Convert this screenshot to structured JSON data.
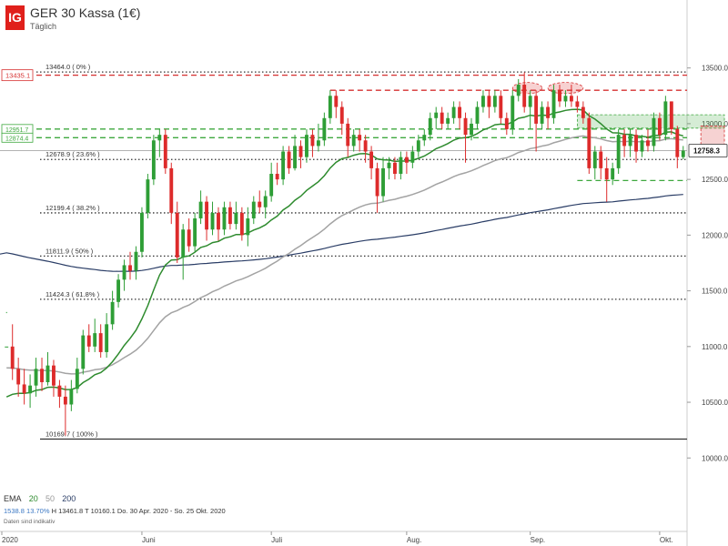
{
  "header": {
    "logo": "IG",
    "title": "GER 30 Kassa (1€)",
    "subtitle": "Täglich"
  },
  "footer": {
    "ema_label": "EMA",
    "ema_periods": [
      "20",
      "50",
      "200"
    ],
    "stat_a": "1538.8",
    "stat_b": "13.70%",
    "stat_high": "H 13461.8",
    "stat_low": "T 10160.1",
    "range": "Do. 30 Apr. 2020 - So. 25 Okt. 2020",
    "note": "Daten sind indikativ"
  },
  "colors": {
    "up": "#2e9e36",
    "down": "#dd2b2b",
    "ema20": "#2e8b2e",
    "ema50": "#a3a3a3",
    "ema200": "#2a3d66",
    "fib": "#333333",
    "resistance": "#d63030",
    "support": "#3ea83e"
  },
  "chart_data": {
    "type": "candlestick",
    "title": "GER 30 Kassa (1€)",
    "timeframe": "Täglich",
    "ylim": [
      9700,
      13620
    ],
    "y_ticks": [
      10000,
      10500,
      11000,
      11500,
      12000,
      12500,
      13000,
      13500
    ],
    "y_tick_labels": [
      "10000.0",
      "10500.0",
      "11000.0",
      "11500.0",
      "12000.0",
      "12500.0",
      "13000.0",
      "13500.0"
    ],
    "x_labels": [
      {
        "label": "2020",
        "index": 0
      },
      {
        "label": "Juni",
        "index": 23
      },
      {
        "label": "Juli",
        "index": 45
      },
      {
        "label": "Aug.",
        "index": 68
      },
      {
        "label": "Sep.",
        "index": 89
      },
      {
        "label": "Okt.",
        "index": 111
      }
    ],
    "current_price": 12758.3,
    "current_price_label": "12758.3",
    "fib_levels": [
      {
        "value": 13464.0,
        "label": "13464.0 ( 0% )"
      },
      {
        "value": 12678.9,
        "label": "12678.9 ( 23.6% )"
      },
      {
        "value": 12199.4,
        "label": "12199.4 ( 38.2% )"
      },
      {
        "value": 11811.9,
        "label": "11811.9 ( 50% )"
      },
      {
        "value": 11424.3,
        "label": "11424.3 ( 61.8% )"
      },
      {
        "value": 10169.7,
        "label": "10169.7 ( 100% )"
      }
    ],
    "resistance_lines": [
      {
        "value": 13435.1,
        "label": "13435.1"
      },
      {
        "value": 13300
      }
    ],
    "support_lines": [
      {
        "value": 12951.7,
        "label": "12951.7"
      },
      {
        "value": 12874.4,
        "label": "12874.4"
      },
      {
        "value": 12490
      }
    ],
    "zones": [
      {
        "x_start": 97,
        "x_end": 122,
        "y_low": 12960,
        "y_high": 13080,
        "kind": "support"
      },
      {
        "x_start": 118,
        "x_end": 122,
        "y_low": 12780,
        "y_high": 12980,
        "kind": "resistance"
      }
    ],
    "highlights": [
      {
        "x_start": 86,
        "x_end": 91,
        "y_low": 13270,
        "y_high": 13370
      },
      {
        "x_start": 92,
        "x_end": 98,
        "y_low": 13270,
        "y_high": 13370
      }
    ],
    "candles": [
      [
        11000,
        11000,
        11300,
        11310
      ],
      [
        11000,
        10800,
        11200,
        10700
      ],
      [
        10800,
        10660,
        10900,
        10550
      ],
      [
        10660,
        10580,
        10800,
        10480
      ],
      [
        10580,
        10650,
        10750,
        10450
      ],
      [
        10650,
        10800,
        10900,
        10550
      ],
      [
        10800,
        10680,
        10900,
        10600
      ],
      [
        10680,
        10830,
        10950,
        10650
      ],
      [
        10830,
        10650,
        10880,
        10550
      ],
      [
        10650,
        10550,
        10700,
        10450
      ],
      [
        10550,
        10480,
        10650,
        10200
      ],
      [
        10480,
        10620,
        10700,
        10420
      ],
      [
        10620,
        10800,
        10900,
        10580
      ],
      [
        10800,
        11100,
        11150,
        10750
      ],
      [
        11100,
        11000,
        11200,
        10950
      ],
      [
        11000,
        11120,
        11250,
        10950
      ],
      [
        11120,
        10950,
        11200,
        10900
      ],
      [
        10950,
        11200,
        11300,
        10900
      ],
      [
        11200,
        11400,
        11500,
        11150
      ],
      [
        11400,
        11600,
        11650,
        11350
      ],
      [
        11600,
        11730,
        11780,
        11500
      ],
      [
        11730,
        11680,
        11850,
        11600
      ],
      [
        11680,
        11850,
        11900,
        11600
      ],
      [
        11850,
        12200,
        12250,
        11800
      ],
      [
        12200,
        12500,
        12550,
        12150
      ],
      [
        12500,
        12850,
        12900,
        12450
      ],
      [
        12850,
        12900,
        12950,
        12700
      ],
      [
        12900,
        12600,
        12950,
        12550
      ],
      [
        12600,
        12200,
        12650,
        12100
      ],
      [
        12200,
        11800,
        12300,
        11750
      ],
      [
        11800,
        12050,
        12100,
        11600
      ],
      [
        12050,
        11900,
        12150,
        11850
      ],
      [
        11900,
        12150,
        12200,
        11850
      ],
      [
        12150,
        12300,
        12400,
        12100
      ],
      [
        12300,
        12050,
        12350,
        11950
      ],
      [
        12050,
        12200,
        12300,
        12000
      ],
      [
        12200,
        12050,
        12250,
        11950
      ],
      [
        12050,
        12250,
        12300,
        12000
      ],
      [
        12250,
        12100,
        12300,
        12050
      ],
      [
        12100,
        12200,
        12300,
        12050
      ],
      [
        12200,
        12000,
        12250,
        11950
      ],
      [
        12000,
        12150,
        12250,
        11900
      ],
      [
        12150,
        12300,
        12350,
        12100
      ],
      [
        12300,
        12250,
        12400,
        12200
      ],
      [
        12250,
        12350,
        12400,
        12150
      ],
      [
        12350,
        12550,
        12650,
        12300
      ],
      [
        12550,
        12500,
        12650,
        12450
      ],
      [
        12500,
        12750,
        12800,
        12450
      ],
      [
        12750,
        12600,
        12800,
        12550
      ],
      [
        12600,
        12800,
        12900,
        12580
      ],
      [
        12800,
        12700,
        12850,
        12600
      ],
      [
        12700,
        12900,
        12950,
        12650
      ],
      [
        12900,
        12800,
        12950,
        12700
      ],
      [
        12800,
        12850,
        13000,
        12750
      ],
      [
        12850,
        13050,
        13100,
        12800
      ],
      [
        13050,
        13250,
        13300,
        13000
      ],
      [
        13250,
        13150,
        13300,
        13050
      ],
      [
        13150,
        13000,
        13200,
        12900
      ],
      [
        13000,
        12800,
        13050,
        12700
      ],
      [
        12800,
        12900,
        12950,
        12750
      ],
      [
        12900,
        12850,
        12950,
        12750
      ],
      [
        12850,
        12750,
        12900,
        12650
      ],
      [
        12750,
        12600,
        12800,
        12500
      ],
      [
        12600,
        12350,
        12650,
        12200
      ],
      [
        12350,
        12600,
        12700,
        12300
      ],
      [
        12600,
        12650,
        12700,
        12500
      ],
      [
        12650,
        12550,
        12700,
        12500
      ],
      [
        12550,
        12700,
        12750,
        12500
      ],
      [
        12700,
        12650,
        12750,
        12550
      ],
      [
        12650,
        12750,
        12800,
        12600
      ],
      [
        12750,
        12850,
        12900,
        12700
      ],
      [
        12850,
        12900,
        12950,
        12800
      ],
      [
        12900,
        13050,
        13100,
        12850
      ],
      [
        13050,
        13100,
        13150,
        12950
      ],
      [
        13100,
        13000,
        13150,
        12950
      ],
      [
        13000,
        13050,
        13100,
        12950
      ],
      [
        13050,
        13150,
        13200,
        13000
      ],
      [
        13150,
        13050,
        13200,
        12950
      ],
      [
        13050,
        12900,
        13100,
        12650
      ],
      [
        12900,
        13000,
        13050,
        12850
      ],
      [
        13000,
        13150,
        13200,
        12950
      ],
      [
        13150,
        13250,
        13300,
        13100
      ],
      [
        13250,
        13150,
        13300,
        13050
      ],
      [
        13150,
        13250,
        13300,
        13100
      ],
      [
        13250,
        13050,
        13300,
        13000
      ],
      [
        13050,
        12950,
        13100,
        12900
      ],
      [
        12950,
        13250,
        13300,
        12900
      ],
      [
        13250,
        13350,
        13400,
        13200
      ],
      [
        13350,
        13150,
        13461,
        13100
      ],
      [
        13150,
        13250,
        13300,
        12950
      ],
      [
        13250,
        13000,
        13300,
        12750
      ],
      [
        13000,
        13150,
        13200,
        12950
      ],
      [
        13150,
        13050,
        13200,
        12950
      ],
      [
        13050,
        13300,
        13350,
        13000
      ],
      [
        13300,
        13200,
        13350,
        13150
      ],
      [
        13200,
        13250,
        13300,
        13150
      ],
      [
        13250,
        13200,
        13350,
        13150
      ],
      [
        13200,
        13150,
        13250,
        13100
      ],
      [
        13150,
        13050,
        13200,
        13000
      ],
      [
        13050,
        12600,
        13100,
        12550
      ],
      [
        12600,
        12750,
        12800,
        12500
      ],
      [
        12750,
        12600,
        12800,
        12500
      ],
      [
        12600,
        12500,
        12700,
        12300
      ],
      [
        12500,
        12600,
        12650,
        12450
      ],
      [
        12600,
        12900,
        12950,
        12550
      ],
      [
        12900,
        12800,
        12950,
        12700
      ],
      [
        12800,
        12900,
        12950,
        12700
      ],
      [
        12900,
        12750,
        12950,
        12650
      ],
      [
        12750,
        12850,
        12900,
        12700
      ],
      [
        12850,
        12800,
        12950,
        12750
      ],
      [
        12800,
        13050,
        13100,
        12750
      ],
      [
        13050,
        12900,
        13100,
        12850
      ],
      [
        12900,
        13200,
        13250,
        12850
      ],
      [
        13200,
        12950,
        13200,
        12900
      ],
      [
        12950,
        12700,
        12980,
        12600
      ],
      [
        12700,
        12758,
        12800,
        12680
      ]
    ]
  }
}
